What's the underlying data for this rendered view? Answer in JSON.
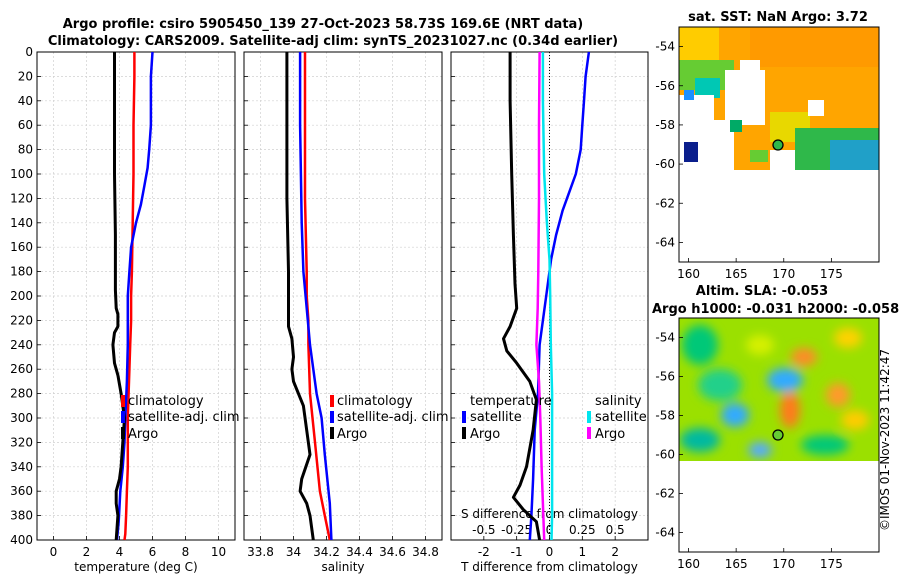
{
  "figure": {
    "title_line1": "Argo profile: csiro 5905450_139 27-Oct-2023 58.73S 169.6E (NRT data)",
    "title_line2": "Climatology: CARS2009. Satellite-adj clim: synTS_20231027.nc (0.34d earlier)",
    "watermark": "©IMOS 01-Nov-2023 11:42:47"
  },
  "colors": {
    "climatology": "#ff0000",
    "satellite": "#0000ff",
    "argo": "#000000",
    "sal_sat": "#00e5ee",
    "sal_argo": "#ff00ff"
  },
  "chart_data": [
    {
      "id": "temperature",
      "type": "line",
      "xlabel": "temperature (deg C)",
      "ylabel": "",
      "xlim": [
        -1,
        11
      ],
      "ylim": [
        400,
        0
      ],
      "xticks": [
        0,
        2,
        4,
        6,
        8,
        10
      ],
      "xtick_labels": [
        "0",
        "2",
        "4",
        "6",
        "8",
        "10"
      ],
      "yticks": [
        0,
        20,
        40,
        60,
        80,
        100,
        120,
        140,
        160,
        180,
        200,
        220,
        240,
        260,
        280,
        300,
        320,
        340,
        360,
        380,
        400
      ],
      "ytick_labels": [
        "0",
        "20",
        "40",
        "60",
        "80",
        "100",
        "120",
        "140",
        "160",
        "180",
        "200",
        "220",
        "240",
        "260",
        "280",
        "300",
        "320",
        "340",
        "360",
        "380",
        "400"
      ],
      "legend": [
        "climatology",
        "satellite-adj. clim",
        "Argo"
      ],
      "series": [
        {
          "name": "climatology",
          "color": "#ff0000",
          "x": [
            4.9,
            4.9,
            4.85,
            4.85,
            4.8,
            4.75,
            4.7,
            4.7,
            4.65,
            4.6,
            4.55,
            4.5,
            4.5,
            4.5,
            4.45,
            4.4,
            4.35,
            4.3
          ],
          "y": [
            0,
            20,
            60,
            100,
            140,
            180,
            200,
            220,
            240,
            260,
            280,
            300,
            320,
            340,
            360,
            380,
            395,
            400
          ]
        },
        {
          "name": "satellite-adj. clim",
          "color": "#0000ff",
          "x": [
            6.0,
            5.9,
            5.9,
            5.9,
            5.8,
            5.7,
            5.5,
            5.3,
            5.0,
            4.7,
            4.6,
            4.5,
            4.5,
            4.45,
            4.35,
            4.3,
            4.2,
            4.05,
            3.95,
            3.85
          ],
          "y": [
            0,
            20,
            50,
            60,
            80,
            95,
            110,
            125,
            140,
            160,
            180,
            200,
            240,
            270,
            300,
            320,
            340,
            360,
            385,
            400
          ]
        },
        {
          "name": "Argo",
          "color": "#000000",
          "x": [
            3.7,
            3.7,
            3.7,
            3.75,
            3.75,
            3.8,
            3.9,
            3.9,
            3.7,
            3.6,
            3.7,
            3.9,
            4.1,
            4.3,
            4.2,
            4.1,
            4.0,
            3.8,
            3.8,
            3.9,
            3.8
          ],
          "y": [
            0,
            20,
            100,
            150,
            195,
            210,
            215,
            225,
            230,
            240,
            255,
            265,
            280,
            300,
            320,
            340,
            350,
            360,
            370,
            380,
            400
          ]
        }
      ]
    },
    {
      "id": "salinity",
      "type": "line",
      "xlabel": "salinity",
      "ylabel": "",
      "xlim": [
        33.7,
        34.9
      ],
      "ylim": [
        400,
        0
      ],
      "xticks": [
        33.8,
        34,
        34.2,
        34.4,
        34.6,
        34.8
      ],
      "xtick_labels": [
        "33.8",
        "34",
        "34.2",
        "34.4",
        "34.6",
        "34.8"
      ],
      "legend": [
        "climatology",
        "satellite-adj. clim",
        "Argo"
      ],
      "series": [
        {
          "name": "climatology",
          "color": "#ff0000",
          "x": [
            34.07,
            34.07,
            34.07,
            34.08,
            34.08,
            34.09,
            34.09,
            34.1,
            34.13,
            34.16,
            34.19,
            34.22
          ],
          "y": [
            0,
            60,
            120,
            180,
            200,
            220,
            240,
            280,
            320,
            360,
            380,
            400
          ]
        },
        {
          "name": "satellite-adj. clim",
          "color": "#0000ff",
          "x": [
            34.04,
            34.04,
            34.05,
            34.06,
            34.08,
            34.1,
            34.12,
            34.14,
            34.17,
            34.19,
            34.22,
            34.23
          ],
          "y": [
            0,
            60,
            140,
            180,
            210,
            240,
            260,
            280,
            300,
            330,
            370,
            400
          ]
        },
        {
          "name": "Argo",
          "color": "#000000",
          "x": [
            33.96,
            33.96,
            33.96,
            33.97,
            33.97,
            33.97,
            33.99,
            34.0,
            33.99,
            34.0,
            34.06,
            34.08,
            34.1,
            34.05,
            34.04,
            34.08,
            34.1,
            34.12
          ],
          "y": [
            0,
            60,
            120,
            180,
            210,
            225,
            235,
            250,
            260,
            270,
            290,
            310,
            330,
            350,
            360,
            370,
            380,
            400
          ]
        }
      ]
    },
    {
      "id": "difference",
      "type": "line",
      "xlabel": "T difference from climatology",
      "secondary_xlabel": "S difference from climatology",
      "xlim": [
        -3,
        3
      ],
      "ylim": [
        400,
        0
      ],
      "xticks": [
        -2,
        -1,
        0,
        1,
        2
      ],
      "xtick_labels": [
        "-2",
        "-1",
        "0",
        "1",
        "2"
      ],
      "secondary_xticks": [
        -0.5,
        -0.25,
        0,
        0.25,
        0.5
      ],
      "secondary_xtick_labels": [
        "-0.5",
        "-0.25",
        "0",
        "0.25",
        "0.5"
      ],
      "secondary_xlim": [
        -0.75,
        0.75
      ],
      "legend_temperature_title": "temperature",
      "legend_salinity_title": "salinity",
      "legend_temperature": [
        "satellite",
        "Argo"
      ],
      "legend_salinity": [
        "satellite",
        "Argo"
      ],
      "series": [
        {
          "name": "T satellite",
          "color": "#0000ff",
          "x": [
            1.2,
            1.1,
            1.05,
            1.0,
            0.95,
            0.8,
            0.6,
            0.4,
            0.2,
            0.05,
            -0.1,
            -0.3,
            -0.35,
            -0.45,
            -0.5,
            -0.55,
            -0.6
          ],
          "y": [
            0,
            20,
            40,
            60,
            80,
            100,
            115,
            130,
            150,
            170,
            200,
            240,
            280,
            310,
            350,
            380,
            400
          ]
        },
        {
          "name": "T Argo",
          "color": "#000000",
          "x": [
            -1.2,
            -1.2,
            -1.15,
            -1.1,
            -1.05,
            -1.0,
            -1.2,
            -1.4,
            -1.3,
            -1.0,
            -0.6,
            -0.4,
            -0.5,
            -0.7,
            -0.9,
            -1.1,
            -0.8,
            -0.4,
            -0.3
          ],
          "y": [
            0,
            40,
            100,
            150,
            190,
            210,
            225,
            235,
            245,
            255,
            270,
            285,
            310,
            340,
            355,
            365,
            375,
            385,
            400
          ]
        },
        {
          "name": "S satellite",
          "color": "#00e5ee",
          "x": [
            -0.05,
            -0.05,
            -0.04,
            -0.02,
            0.0,
            0.005,
            0.01,
            0.02,
            0.02,
            0.02,
            0.02,
            0.015
          ],
          "y": [
            0,
            40,
            100,
            140,
            170,
            200,
            240,
            280,
            320,
            360,
            380,
            400
          ]
        },
        {
          "name": "S Argo",
          "color": "#ff00ff",
          "x": [
            -0.075,
            -0.08,
            -0.08,
            -0.085,
            -0.09,
            -0.1,
            -0.08,
            -0.07,
            -0.06,
            -0.05,
            -0.04
          ],
          "y": [
            0,
            60,
            120,
            180,
            210,
            240,
            270,
            300,
            340,
            370,
            400
          ]
        }
      ]
    },
    {
      "id": "sst_map",
      "type": "heatmap",
      "title": "sat. SST: NaN Argo: 3.72",
      "xlim": [
        159,
        180
      ],
      "ylim": [
        -65,
        -53
      ],
      "xticks": [
        160,
        165,
        170,
        175
      ],
      "xtick_labels": [
        "160",
        "165",
        "170",
        "175"
      ],
      "yticks": [
        -54,
        -56,
        -58,
        -60,
        -62,
        -64
      ],
      "ytick_labels": [
        "-54",
        "-56",
        "-58",
        "-60",
        "-62",
        "-64"
      ],
      "argo_position": {
        "lon": 169.6,
        "lat": -58.73
      },
      "data_extent_lat": [
        -60,
        -53
      ]
    },
    {
      "id": "sla_map",
      "type": "heatmap",
      "title_line1": "Altim. SLA: -0.053",
      "title_line2": "Argo h1000: -0.031 h2000: -0.058",
      "xlim": [
        159,
        180
      ],
      "ylim": [
        -65,
        -53
      ],
      "xticks": [
        160,
        165,
        170,
        175
      ],
      "xtick_labels": [
        "160",
        "165",
        "170",
        "175"
      ],
      "yticks": [
        -54,
        -56,
        -58,
        -60,
        -62,
        -64
      ],
      "ytick_labels": [
        "-54",
        "-56",
        "-58",
        "-60",
        "-62",
        "-64"
      ],
      "argo_position": {
        "lon": 169.6,
        "lat": -58.73
      },
      "data_extent_lat": [
        -60,
        -53
      ]
    }
  ]
}
